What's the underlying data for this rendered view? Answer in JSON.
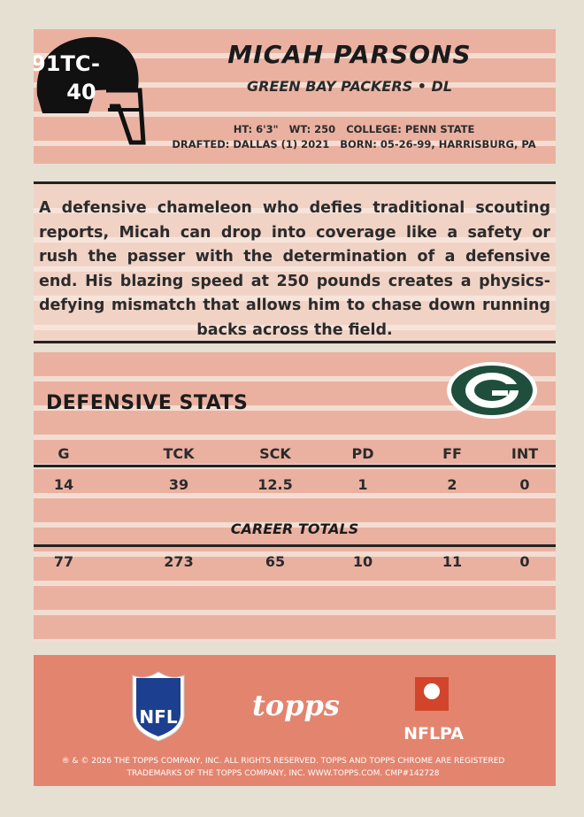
{
  "card_number": [
    "91TC-",
    "40"
  ],
  "name": "MICAH PARSONS",
  "team_position": "GREEN BAY PACKERS • DL",
  "info": [
    "HT: 6'3\"   WT: 250   COLLEGE: PENN STATE",
    "DRAFTED: DALLAS (1) 2021   BORN: 05-26-99, HARRISBURG, PA"
  ],
  "bio": "A defensive chameleon who defies traditional scouting reports, Micah can drop into coverage like a safety or rush the passer with the determination of a defensive end. His blazing speed at 250 pounds creates a physics-defying mismatch that allows him to chase down running backs across the field.",
  "stats": {
    "title": "DEFENSIVE STATS",
    "columns": [
      "G",
      "TCK",
      "SCK",
      "PD",
      "FF",
      "INT"
    ],
    "season": [
      14,
      39,
      12.5,
      1,
      2,
      0
    ],
    "career_label": "CAREER TOTALS",
    "career": [
      77,
      273,
      65,
      10,
      11,
      0
    ]
  },
  "logos": {
    "nfl": "NFL",
    "topps": "topps",
    "nflpa": "NFLPA"
  },
  "legal": [
    "® & © 2026 THE TOPPS COMPANY, INC. ALL RIGHTS RESERVED. TOPPS AND TOPPS CHROME ARE REGISTERED",
    "TRADEMARKS OF THE TOPPS COMPANY, INC. WWW.TOPPS.COM. CMP#142728"
  ]
}
